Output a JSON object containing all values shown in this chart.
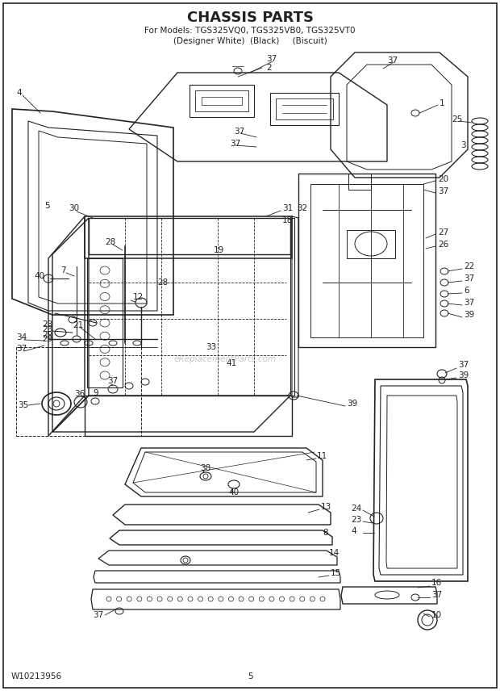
{
  "title": "CHASSIS PARTS",
  "subtitle1": "For Models: TGS325VQ0, TGS325VB0, TGS325VT0",
  "subtitle2": "(Designer White)  (Black)     (Biscuit)",
  "footer_left": "W10213956",
  "footer_center": "5",
  "bg_color": "#ffffff",
  "line_color": "#222222",
  "title_fontsize": 13,
  "subtitle_fontsize": 7.5,
  "part_label_fontsize": 7.5,
  "footer_fontsize": 7.5,
  "watermark": "eReplacementParts.com"
}
